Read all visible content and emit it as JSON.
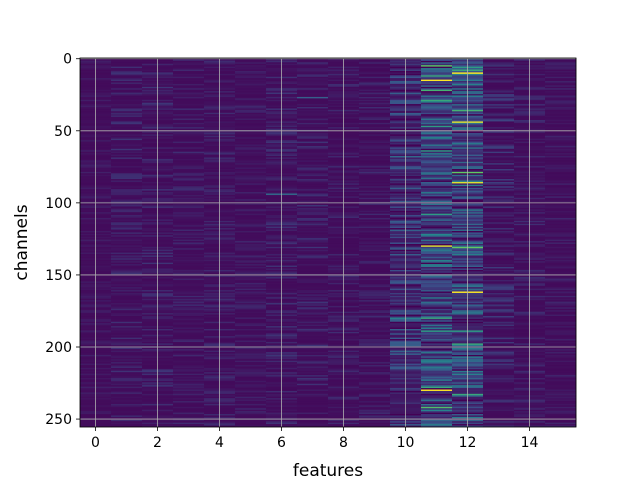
{
  "chart_data": {
    "type": "heatmap",
    "title": "",
    "xlabel": "features",
    "ylabel": "channels",
    "x_ticks": [
      0,
      2,
      4,
      6,
      8,
      10,
      12,
      14
    ],
    "y_ticks": [
      0,
      50,
      100,
      150,
      200,
      250
    ],
    "x_range": [
      -0.5,
      15.5
    ],
    "y_range": [
      255.5,
      -0.5
    ],
    "columns": 16,
    "rows": 256,
    "y_axis_inverted": true,
    "grid": true,
    "colormap": "viridis",
    "background_level": 0.03,
    "column_activity": [
      0.03,
      0.06,
      0.06,
      0.05,
      0.05,
      0.04,
      0.06,
      0.06,
      0.05,
      0.05,
      0.22,
      0.32,
      0.3,
      0.08,
      0.05,
      0.04
    ],
    "strong_features": [
      10,
      11,
      12
    ],
    "highlights": [
      {
        "feature": 11,
        "channel": 5,
        "value": 0.75
      },
      {
        "feature": 11,
        "channel": 12,
        "value": 0.6
      },
      {
        "feature": 11,
        "channel": 15,
        "value": 1.0
      },
      {
        "feature": 11,
        "channel": 22,
        "value": 0.65
      },
      {
        "feature": 11,
        "channel": 29,
        "value": 0.6
      },
      {
        "feature": 11,
        "channel": 47,
        "value": 0.55
      },
      {
        "feature": 11,
        "channel": 55,
        "value": 0.5
      },
      {
        "feature": 11,
        "channel": 64,
        "value": 0.55
      },
      {
        "feature": 11,
        "channel": 108,
        "value": 0.55
      },
      {
        "feature": 11,
        "channel": 130,
        "value": 0.95
      },
      {
        "feature": 11,
        "channel": 180,
        "value": 0.6
      },
      {
        "feature": 11,
        "channel": 189,
        "value": 0.55
      },
      {
        "feature": 11,
        "channel": 228,
        "value": 0.6
      },
      {
        "feature": 11,
        "channel": 230,
        "value": 1.0
      },
      {
        "feature": 11,
        "channel": 242,
        "value": 0.7
      },
      {
        "feature": 12,
        "channel": 6,
        "value": 0.55
      },
      {
        "feature": 12,
        "channel": 8,
        "value": 0.6
      },
      {
        "feature": 12,
        "channel": 10,
        "value": 1.0
      },
      {
        "feature": 12,
        "channel": 36,
        "value": 0.65
      },
      {
        "feature": 12,
        "channel": 44,
        "value": 0.95
      },
      {
        "feature": 12,
        "channel": 79,
        "value": 0.75
      },
      {
        "feature": 12,
        "channel": 86,
        "value": 0.95
      },
      {
        "feature": 12,
        "channel": 131,
        "value": 0.75
      },
      {
        "feature": 12,
        "channel": 162,
        "value": 1.0
      },
      {
        "feature": 12,
        "channel": 189,
        "value": 0.55
      },
      {
        "feature": 12,
        "channel": 198,
        "value": 0.6
      },
      {
        "feature": 12,
        "channel": 233,
        "value": 0.6
      },
      {
        "feature": 10,
        "channel": 30,
        "value": 0.3
      },
      {
        "feature": 10,
        "channel": 68,
        "value": 0.35
      },
      {
        "feature": 10,
        "channel": 180,
        "value": 0.45
      },
      {
        "feature": 10,
        "channel": 205,
        "value": 0.3
      },
      {
        "feature": 6,
        "channel": 94,
        "value": 0.35
      },
      {
        "feature": 7,
        "channel": 27,
        "value": 0.3
      }
    ]
  }
}
